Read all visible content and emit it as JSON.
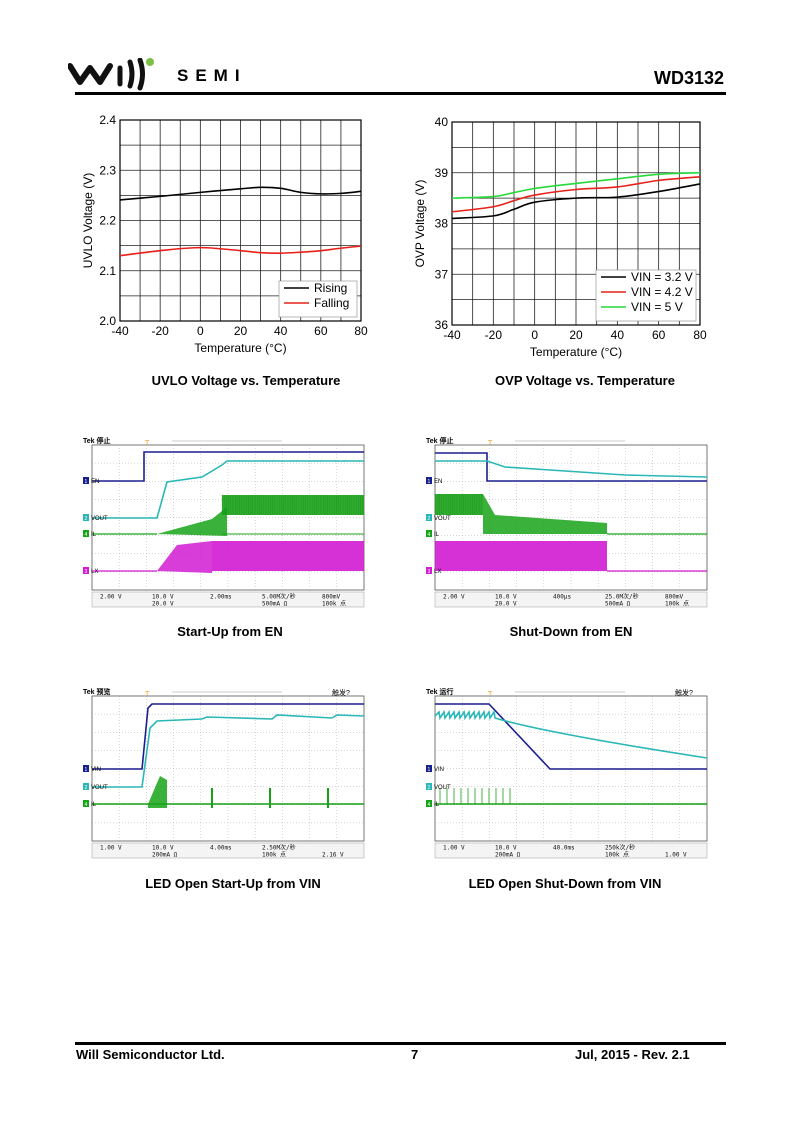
{
  "header": {
    "brand_text": "SEMI",
    "part_number": "WD3132"
  },
  "footer": {
    "company": "Will Semiconductor Ltd.",
    "page_number": "7",
    "revision": "Jul, 2015 - Rev. 2.1"
  },
  "captions": {
    "uvlo": "UVLO Voltage vs. Temperature",
    "ovp": "OVP Voltage vs. Temperature",
    "startup_en": "Start-Up from EN",
    "shutdown_en": "Shut-Down from EN",
    "led_startup_vin": "LED Open Start-Up from VIN",
    "led_shutdown_vin": "LED Open Shut-Down from VIN"
  },
  "chart_data": [
    {
      "type": "line",
      "xlabel": "Temperature (°C)",
      "ylabel": "UVLO Voltage (V)",
      "xlim": [
        -40,
        80
      ],
      "ylim": [
        2.0,
        2.4
      ],
      "xticks": [
        -40,
        -20,
        0,
        20,
        40,
        60,
        80
      ],
      "yticks": [
        "2.0",
        "2.1",
        "2.2",
        "2.3",
        "2.4"
      ],
      "x": [
        -40,
        -20,
        0,
        20,
        30,
        40,
        50,
        60,
        70,
        80
      ],
      "series": [
        {
          "name": "Rising",
          "color": "#000000",
          "values": [
            2.241,
            2.248,
            2.256,
            2.263,
            2.266,
            2.264,
            2.256,
            2.253,
            2.254,
            2.258
          ]
        },
        {
          "name": "Falling",
          "color": "#e8201a",
          "values": [
            2.13,
            2.14,
            2.146,
            2.14,
            2.136,
            2.135,
            2.137,
            2.14,
            2.145,
            2.149
          ]
        }
      ],
      "legend": "bottom-right",
      "grid": true
    },
    {
      "type": "line",
      "xlabel": "Temperature (°C)",
      "ylabel": "OVP Voltage (V)",
      "xlim": [
        -40,
        80
      ],
      "ylim": [
        36,
        40
      ],
      "xticks": [
        -40,
        -20,
        0,
        20,
        40,
        60,
        80
      ],
      "yticks": [
        "36",
        "37",
        "38",
        "39",
        "40"
      ],
      "x": [
        -40,
        -20,
        -10,
        0,
        20,
        40,
        60,
        80
      ],
      "series": [
        {
          "name": "VIN = 3.2 V",
          "color": "#000000",
          "values": [
            38.1,
            38.15,
            38.28,
            38.42,
            38.5,
            38.52,
            38.63,
            38.78
          ]
        },
        {
          "name": "VIN = 4.2 V",
          "color": "#e8201a",
          "values": [
            38.23,
            38.33,
            38.45,
            38.56,
            38.67,
            38.72,
            38.85,
            38.92
          ]
        },
        {
          "name": "VIN = 5 V",
          "color": "#27d93a",
          "values": [
            38.5,
            38.53,
            38.61,
            38.69,
            38.79,
            38.88,
            38.97,
            39.0
          ]
        }
      ],
      "legend": "bottom-right",
      "grid": true
    }
  ],
  "scopes": [
    {
      "id": "startup_en",
      "title": "Tek 停止",
      "marker": "T",
      "channels": [
        "EN",
        "VOUT",
        "IL",
        "LX"
      ],
      "status_row1": [
        "2.00 V",
        "10.0 V",
        "2.00ms",
        "5.00M次/秒",
        "800mV"
      ],
      "status_row2": [
        "20.0 V",
        "500mA Ω",
        "100k 点"
      ]
    },
    {
      "id": "shutdown_en",
      "title": "Tek 停止",
      "marker": "T",
      "channels": [
        "EN",
        "VOUT",
        "IL",
        "LX"
      ],
      "status_row1": [
        "2.00 V",
        "10.0 V",
        "400μs",
        "25.0M次/秒",
        "800mV"
      ],
      "status_row2": [
        "20.0 V",
        "500mA Ω",
        "100k 点"
      ]
    },
    {
      "id": "led_startup_vin",
      "title": "Tek 预览",
      "marker": "T",
      "right_label": "触发?",
      "channels": [
        "VIN",
        "VOUT",
        "IL"
      ],
      "status_row1": [
        "1.00 V",
        "10.0 V",
        "4.00ms",
        "2.50M次/秒"
      ],
      "status_row2": [
        "200mA Ω",
        "100k 点",
        "2.16 V"
      ]
    },
    {
      "id": "led_shutdown_vin",
      "title": "Tek 运行",
      "marker": "T",
      "right_label": "触发?",
      "channels": [
        "VIN",
        "VOUT",
        "IL"
      ],
      "status_row1": [
        "1.00 V",
        "10.0 V",
        "40.0ms",
        "250k次/秒"
      ],
      "status_row2": [
        "200mA Ω",
        "100k 点",
        "1.00 V"
      ]
    }
  ]
}
